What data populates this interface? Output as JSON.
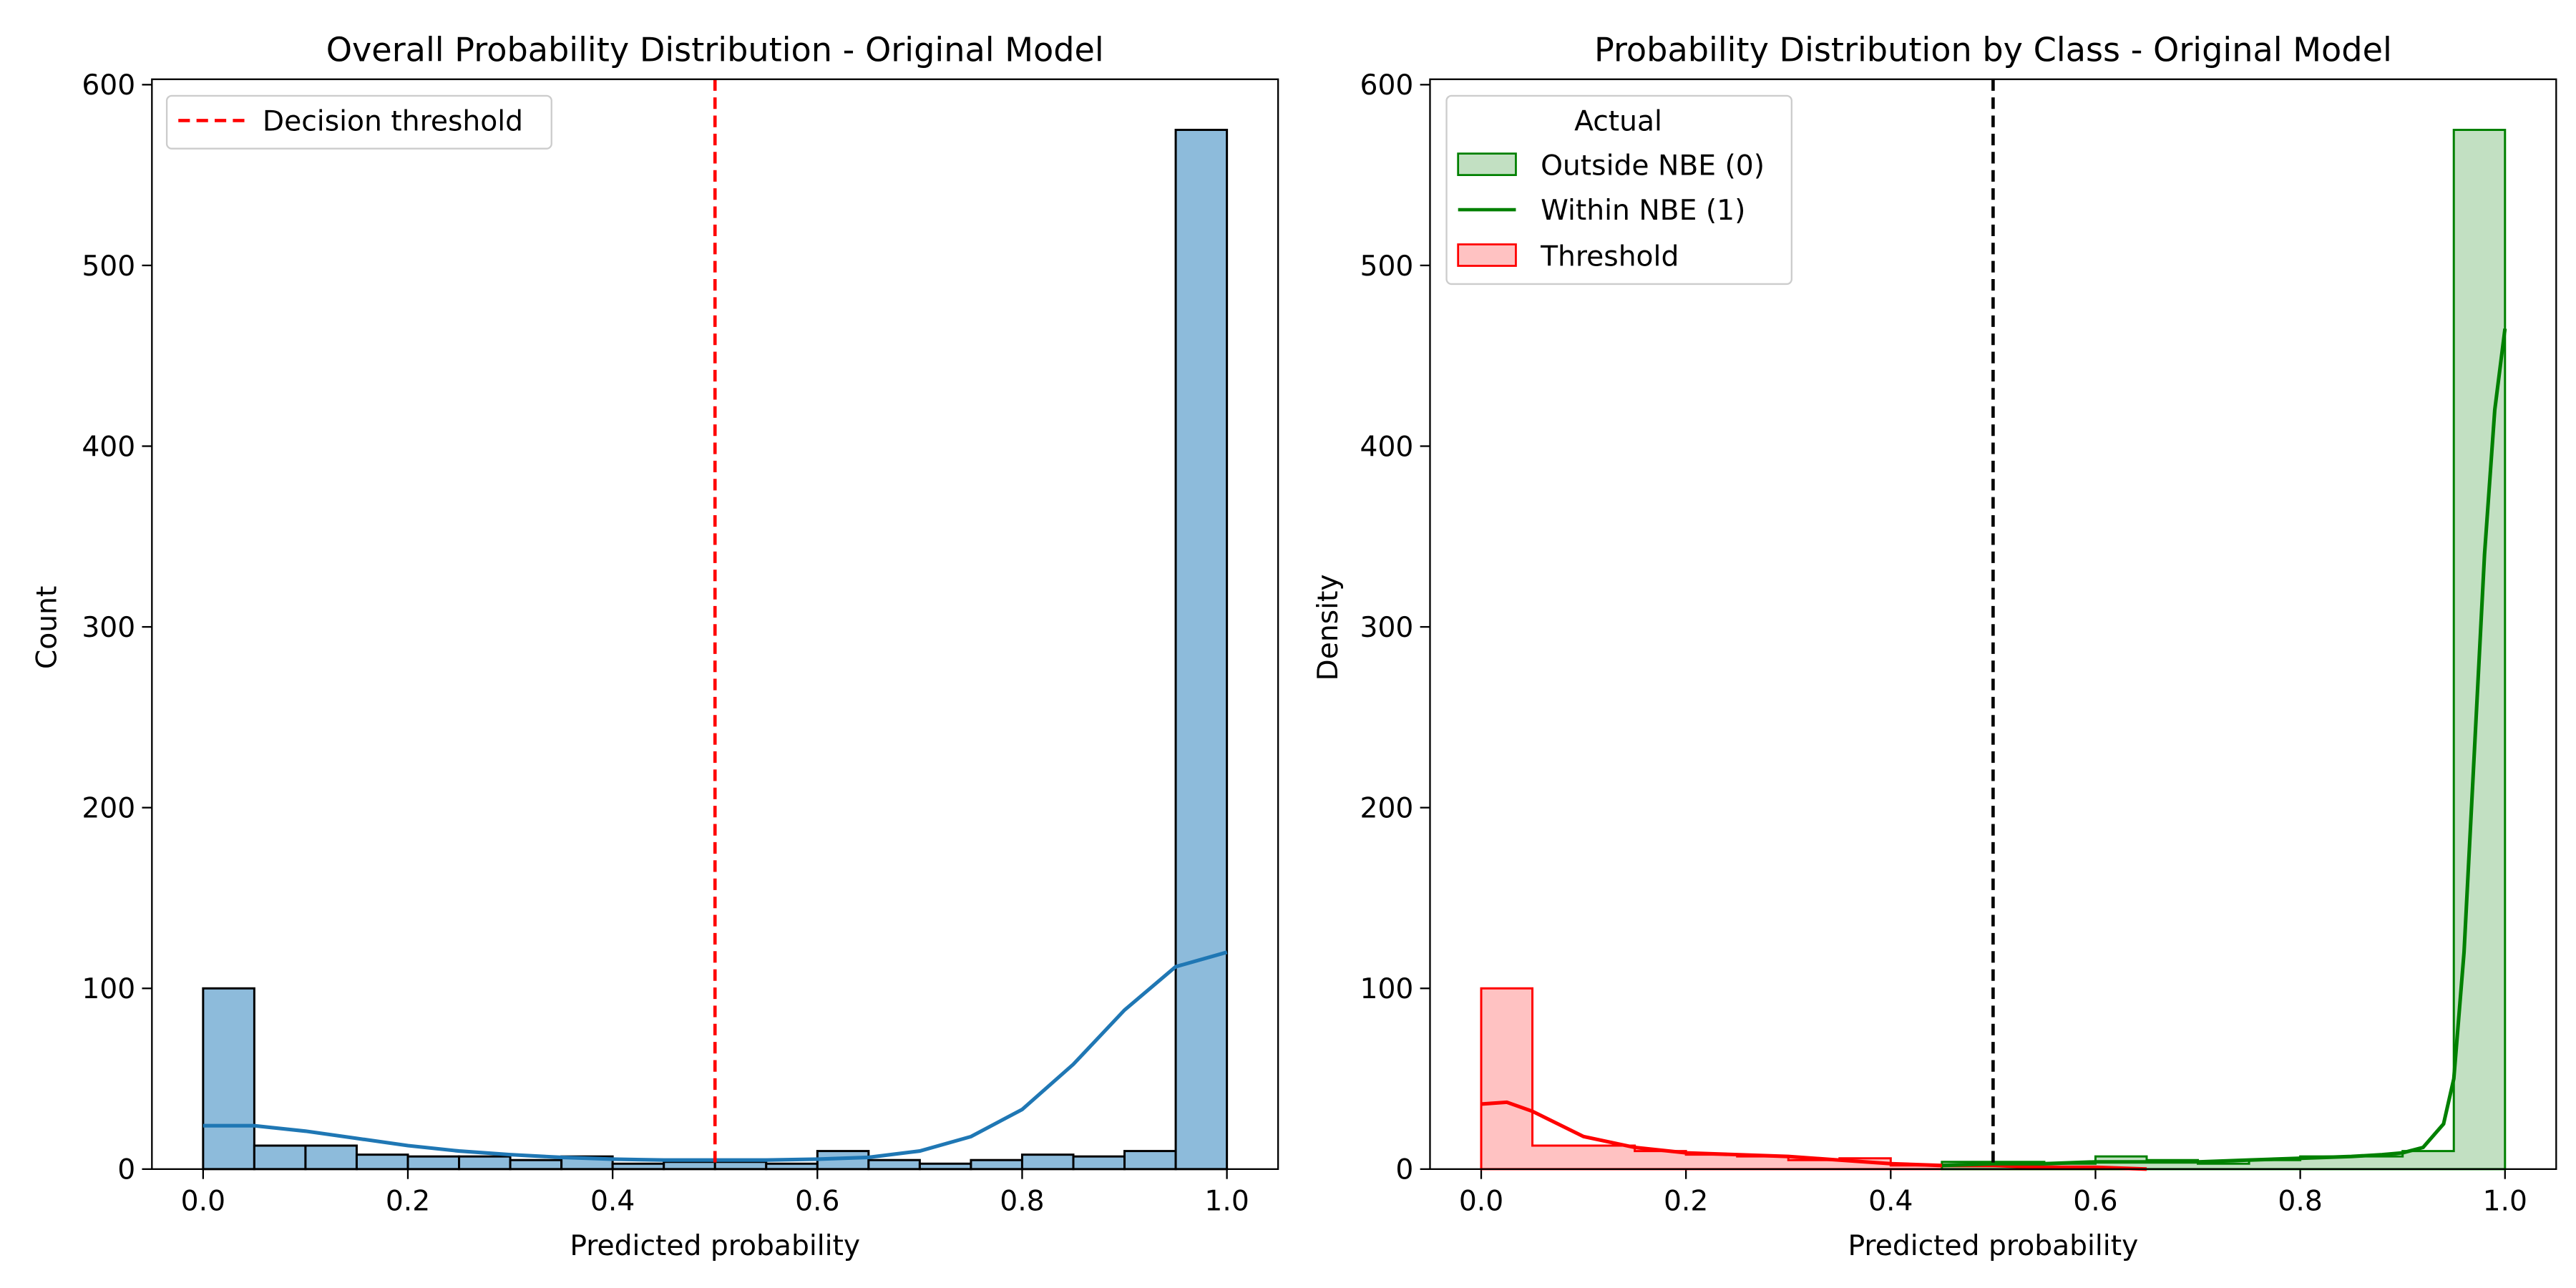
{
  "colors": {
    "hist_blue_fill": "#8dbbdb",
    "kde_blue": "#1f77b4",
    "bar_edge": "#000000",
    "threshold_red": "#ff0000",
    "class_green": "#008000",
    "class_green_fill": "#c2e0c2",
    "class_red": "#ff0000",
    "class_red_fill": "#ffc2c2",
    "threshold_black": "#000000"
  },
  "chart_data": [
    {
      "type": "bar",
      "title": "Overall Probability Distribution - Original Model",
      "xlabel": "Predicted probability",
      "ylabel": "Count",
      "xlim": [
        -0.05,
        1.05
      ],
      "ylim": [
        0,
        603
      ],
      "xticks": [
        0.0,
        0.2,
        0.4,
        0.6,
        0.8,
        1.0
      ],
      "xtick_labels": [
        "0.0",
        "0.2",
        "0.4",
        "0.6",
        "0.8",
        "1.0"
      ],
      "yticks": [
        0,
        100,
        200,
        300,
        400,
        500,
        600
      ],
      "ytick_labels": [
        "0",
        "100",
        "200",
        "300",
        "400",
        "500",
        "600"
      ],
      "grid": false,
      "legend_position": "top-left",
      "bin_edges": [
        0.0,
        0.05,
        0.1,
        0.15,
        0.2,
        0.25,
        0.3,
        0.35,
        0.4,
        0.45,
        0.5,
        0.55,
        0.6,
        0.65,
        0.7,
        0.75,
        0.8,
        0.85,
        0.9,
        0.95,
        1.0
      ],
      "counts": [
        100,
        13,
        13,
        8,
        7,
        7,
        5,
        7,
        3,
        4,
        4,
        3,
        10,
        5,
        3,
        5,
        8,
        7,
        10,
        575
      ],
      "kde": {
        "x": [
          0.0,
          0.05,
          0.1,
          0.15,
          0.2,
          0.25,
          0.3,
          0.35,
          0.4,
          0.45,
          0.5,
          0.55,
          0.6,
          0.65,
          0.7,
          0.75,
          0.8,
          0.85,
          0.9,
          0.95,
          1.0
        ],
        "y": [
          24,
          24,
          21,
          17,
          13,
          10,
          8,
          6.5,
          5.5,
          5,
          5,
          5,
          5.5,
          6.5,
          10,
          18,
          33,
          58,
          88,
          112,
          120
        ]
      },
      "threshold": {
        "x": 0.5,
        "label": "Decision threshold"
      }
    },
    {
      "type": "bar",
      "title": "Probability Distribution by Class - Original Model",
      "xlabel": "Predicted probability",
      "ylabel": "Density",
      "xlim": [
        -0.05,
        1.05
      ],
      "ylim": [
        0,
        603
      ],
      "xticks": [
        0.0,
        0.2,
        0.4,
        0.6,
        0.8,
        1.0
      ],
      "xtick_labels": [
        "0.0",
        "0.2",
        "0.4",
        "0.6",
        "0.8",
        "1.0"
      ],
      "yticks": [
        0,
        100,
        200,
        300,
        400,
        500,
        600
      ],
      "ytick_labels": [
        "0",
        "100",
        "200",
        "300",
        "400",
        "500",
        "600"
      ],
      "grid": false,
      "legend_position": "top-left",
      "legend_title": "Actual",
      "legend_entries": [
        "Outside NBE (0)",
        "Within NBE (1)",
        "Threshold"
      ],
      "threshold_x": 0.5,
      "series": [
        {
          "name": "Outside NBE (0)",
          "bin_edges": [
            0.45,
            0.5,
            0.55,
            0.6,
            0.65,
            0.7,
            0.75,
            0.8,
            0.85,
            0.9,
            0.95,
            1.0
          ],
          "counts": [
            4,
            4,
            3,
            7,
            5,
            3,
            5,
            7,
            7,
            10,
            575
          ],
          "kde": {
            "x": [
              0.45,
              0.5,
              0.55,
              0.6,
              0.65,
              0.7,
              0.75,
              0.8,
              0.85,
              0.88,
              0.9,
              0.92,
              0.94,
              0.95,
              0.96,
              0.97,
              0.98,
              0.99,
              1.0
            ],
            "y": [
              2,
              3,
              3,
              4,
              4,
              4,
              5,
              6,
              7,
              8,
              9,
              12,
              25,
              50,
              120,
              230,
              340,
              420,
              465
            ]
          }
        },
        {
          "name": "Threshold",
          "bin_edges": [
            0.0,
            0.05,
            0.1,
            0.15,
            0.2,
            0.25,
            0.3,
            0.35,
            0.4,
            0.45,
            0.5,
            0.55,
            0.6,
            0.65
          ],
          "counts": [
            100,
            13,
            13,
            10,
            8,
            7,
            5,
            6,
            2,
            2,
            1,
            1,
            2
          ],
          "kde": {
            "x": [
              0.0,
              0.025,
              0.05,
              0.1,
              0.15,
              0.2,
              0.25,
              0.3,
              0.35,
              0.4,
              0.45,
              0.5,
              0.55,
              0.6,
              0.65
            ],
            "y": [
              36,
              37,
              32,
              18,
              12,
              9,
              8,
              7,
              5,
              3,
              2,
              2,
              1,
              1,
              0
            ]
          }
        }
      ]
    }
  ]
}
